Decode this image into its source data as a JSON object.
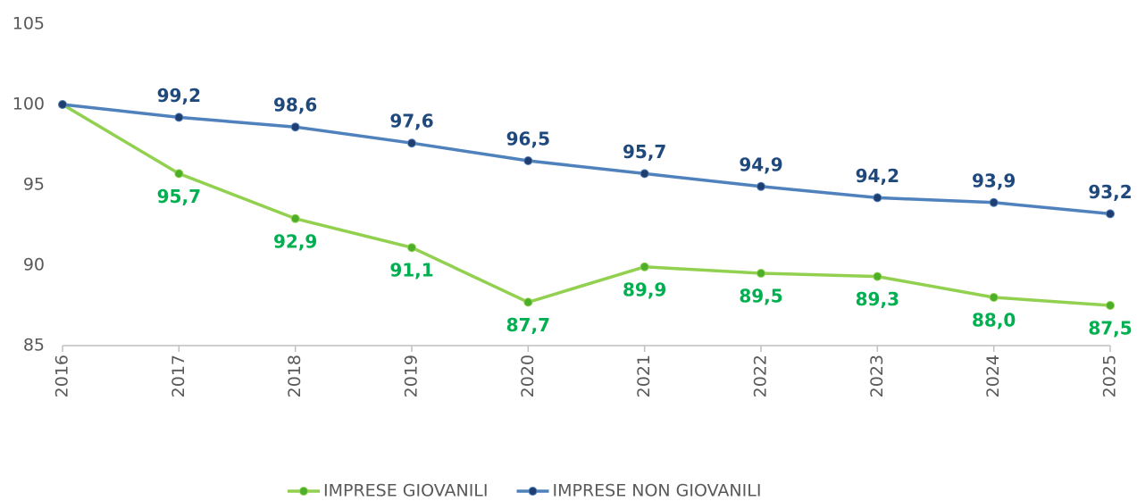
{
  "chart_data": {
    "type": "line",
    "categories": [
      "2016",
      "2017",
      "2018",
      "2019",
      "2020",
      "2021",
      "2022",
      "2023",
      "2024",
      "2025"
    ],
    "series": [
      {
        "name": "IMPRESE GIOVANILI",
        "color": "#92d050",
        "marker_color": "#4caf2a",
        "label_color": "#00b050",
        "label_position": "below",
        "values": [
          100,
          95.7,
          92.9,
          91.1,
          87.7,
          89.9,
          89.5,
          89.3,
          88.0,
          87.5
        ],
        "value_labels": [
          null,
          "95,7",
          "92,9",
          "91,1",
          "87,7",
          "89,9",
          "89,5",
          "89,3",
          "88,0",
          "87,5"
        ]
      },
      {
        "name": "IMPRESE NON GIOVANILI",
        "color": "#4f81bd",
        "marker_color": "#1f3d6e",
        "label_color": "#1f497d",
        "label_position": "above",
        "values": [
          100,
          99.2,
          98.6,
          97.6,
          96.5,
          95.7,
          94.9,
          94.2,
          93.9,
          93.2
        ],
        "value_labels": [
          null,
          "99,2",
          "98,6",
          "97,6",
          "96,5",
          "95,7",
          "94,9",
          "94,2",
          "93,9",
          "93,2"
        ]
      }
    ],
    "ylim": [
      85,
      105
    ],
    "yticks": [
      85,
      90,
      95,
      100,
      105
    ],
    "grid": false,
    "legend": "bottom"
  }
}
